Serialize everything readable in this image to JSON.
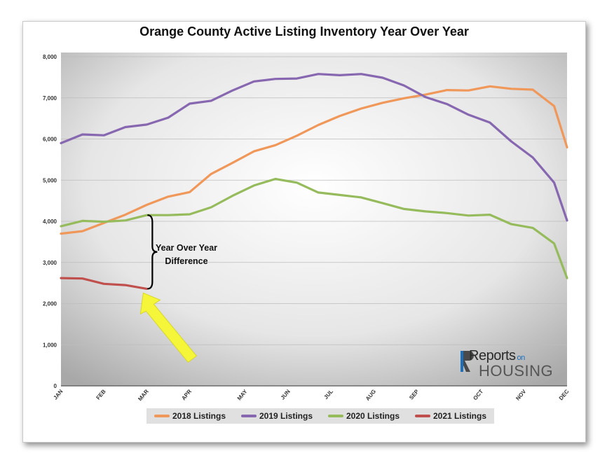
{
  "chart_data": {
    "type": "line",
    "title": "Orange County Active Listing Inventory Year Over Year",
    "xlabel": "",
    "ylabel": "",
    "ylim": [
      0,
      8000
    ],
    "yticks": [
      0,
      1000,
      2000,
      3000,
      4000,
      5000,
      6000,
      7000,
      8000
    ],
    "ytick_labels": [
      "0",
      "1,000",
      "2,000",
      "3,000",
      "4,000",
      "5,000",
      "6,000",
      "7,000",
      "8,000"
    ],
    "x_range": [
      0,
      11.8
    ],
    "month_labels": [
      {
        "label": "JAN",
        "x": 0
      },
      {
        "label": "FEB",
        "x": 1
      },
      {
        "label": "MAR",
        "x": 2
      },
      {
        "label": "APR",
        "x": 3
      },
      {
        "label": "MAY",
        "x": 4.3
      },
      {
        "label": "JUN",
        "x": 5.3
      },
      {
        "label": "JUL",
        "x": 6.3
      },
      {
        "label": "AUG",
        "x": 7.3
      },
      {
        "label": "SEP",
        "x": 8.3
      },
      {
        "label": "OCT",
        "x": 9.8
      },
      {
        "label": "NOV",
        "x": 10.8
      },
      {
        "label": "DEC",
        "x": 11.8
      }
    ],
    "grid": true,
    "legend_position": "bottom",
    "series": [
      {
        "name": "2018 Listings",
        "color": "#f0975a",
        "x": [
          0,
          0.5,
          1,
          1.5,
          2,
          2.5,
          3,
          3.5,
          4,
          4.5,
          5,
          5.5,
          6,
          6.5,
          7,
          7.5,
          8,
          8.5,
          9,
          9.5,
          10,
          10.5,
          11,
          11.5,
          12.4
        ],
        "y": [
          3700,
          3760,
          3960,
          4160,
          4400,
          4600,
          4710,
          5150,
          5420,
          5700,
          5850,
          6080,
          6340,
          6560,
          6740,
          6880,
          6990,
          7080,
          7190,
          7180,
          7280,
          7220,
          7200,
          6800,
          5800
        ]
      },
      {
        "name": "2019 Listings",
        "color": "#8667b0",
        "x": [
          0,
          0.5,
          1,
          1.5,
          2,
          2.5,
          3,
          3.5,
          4,
          4.5,
          5,
          5.5,
          6,
          6.5,
          7,
          7.5,
          8,
          8.5,
          9,
          9.5,
          10,
          10.5,
          11,
          11.5,
          12.4
        ],
        "y": [
          5900,
          6110,
          6090,
          6290,
          6350,
          6520,
          6860,
          6930,
          7180,
          7400,
          7460,
          7470,
          7580,
          7550,
          7580,
          7490,
          7300,
          7020,
          6850,
          6590,
          6400,
          5940,
          5550,
          4940,
          4020
        ]
      },
      {
        "name": "2020 Listings",
        "color": "#96bb5c",
        "x": [
          0,
          0.5,
          1,
          1.5,
          2,
          2.5,
          3,
          3.5,
          4,
          4.5,
          5,
          5.5,
          6,
          6.5,
          7,
          7.5,
          8,
          8.5,
          9,
          9.5,
          10,
          10.5,
          11,
          11.5,
          12.4
        ],
        "y": [
          3880,
          4010,
          3990,
          4020,
          4150,
          4150,
          4170,
          4340,
          4620,
          4870,
          5030,
          4940,
          4700,
          4640,
          4580,
          4440,
          4300,
          4240,
          4200,
          4140,
          4160,
          3930,
          3840,
          3460,
          2620
        ]
      },
      {
        "name": "2021 Listings",
        "color": "#c0504d",
        "x": [
          0,
          0.5,
          1,
          1.5,
          2
        ],
        "y": [
          2620,
          2610,
          2480,
          2450,
          2360
        ]
      }
    ],
    "annotations": [
      {
        "text_lines": [
          "Year Over Year",
          "Difference"
        ],
        "brace_x": 2,
        "brace_y": [
          2360,
          4150
        ]
      }
    ]
  },
  "logo": {
    "reports": "Reports",
    "on": "on",
    "housing": "HOUSING"
  },
  "colors": {
    "plot_center": "#ffffff",
    "plot_edge": "#a8a8a8",
    "arrow": "#f5f53a"
  }
}
